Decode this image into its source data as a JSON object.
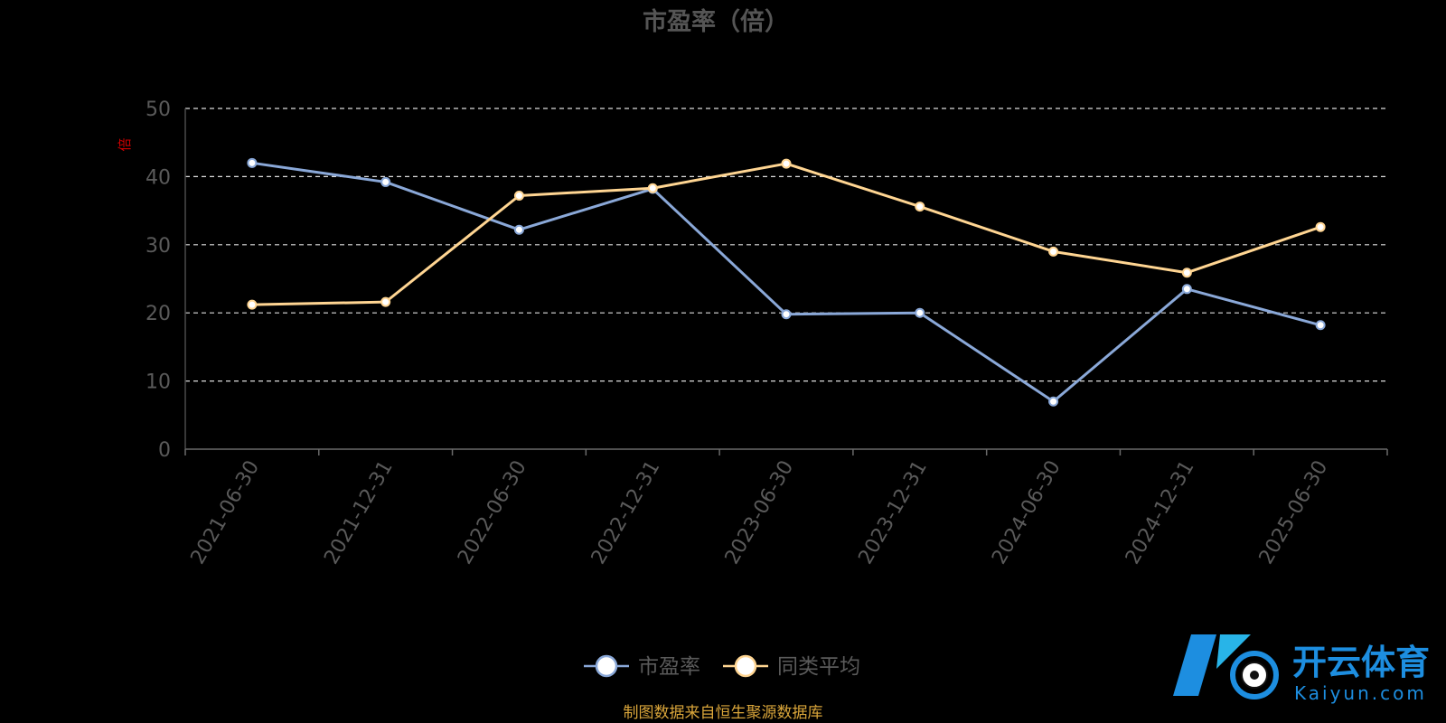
{
  "chart_data": {
    "type": "line",
    "title": "市盈率（倍）",
    "y_unit": "倍",
    "categories": [
      "2021-06-30",
      "2021-12-31",
      "2022-06-30",
      "2022-12-31",
      "2023-06-30",
      "2023-12-31",
      "2024-06-30",
      "2024-12-31",
      "2025-06-30"
    ],
    "series": [
      {
        "name": "市盈率",
        "color": "#8aa8d8",
        "values": [
          42.0,
          39.2,
          32.2,
          38.2,
          19.8,
          20.0,
          7.0,
          23.5,
          18.2
        ]
      },
      {
        "name": "同类平均",
        "color": "#ffd592",
        "values": [
          21.2,
          21.6,
          37.2,
          38.3,
          41.9,
          35.6,
          29.0,
          25.9,
          32.6
        ]
      }
    ],
    "ylim": [
      0,
      50
    ],
    "yticks": [
      0,
      10,
      20,
      30,
      40,
      50
    ],
    "grid": true,
    "legend": "bottom-center"
  },
  "source_note": "制图数据来自恒生聚源数据库",
  "watermark": {
    "name": "开云体育",
    "domain": "Kaiyun.com"
  }
}
